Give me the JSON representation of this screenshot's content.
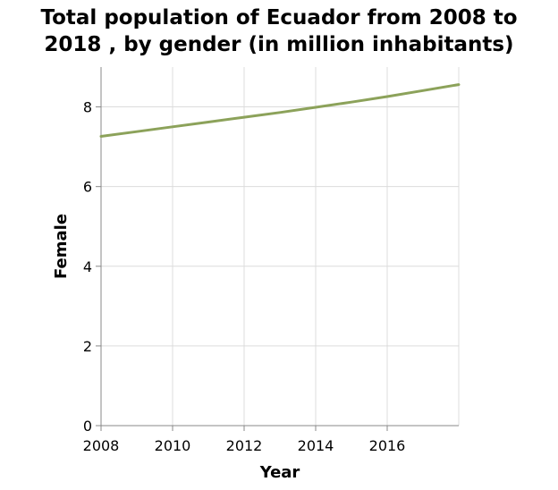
{
  "chart_data": {
    "type": "line",
    "title_lines": [
      "Total population of Ecuador from 2008 to",
      "2018 , by gender (in million inhabitants)"
    ],
    "xlabel": "Year",
    "ylabel": "Female",
    "x": [
      2008,
      2009,
      2010,
      2011,
      2012,
      2013,
      2014,
      2015,
      2016,
      2017,
      2018
    ],
    "series": [
      {
        "values": [
          7.26,
          7.38,
          7.5,
          7.62,
          7.74,
          7.86,
          7.99,
          8.12,
          8.26,
          8.41,
          8.56
        ]
      }
    ],
    "xlim": [
      2008,
      2018
    ],
    "ylim": [
      0,
      9
    ],
    "x_ticks": [
      2008,
      2010,
      2012,
      2014,
      2016
    ],
    "y_ticks": [
      0,
      2,
      4,
      6,
      8
    ],
    "grid": true,
    "line_color": "#8ca25a"
  }
}
